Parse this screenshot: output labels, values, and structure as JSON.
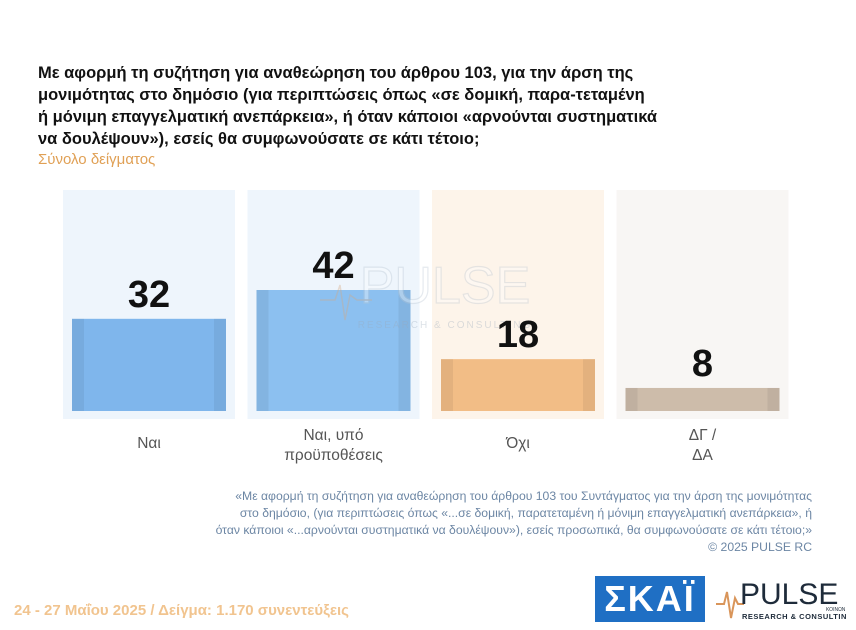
{
  "question": {
    "title": "Με αφορμή τη συζήτηση για αναθεώρηση του άρθρου 103, για την άρση της μονιμότητας στο δημόσιο (για περιπτώσεις όπως «σε δομική, παρα-τεταμένη ή μόνιμη επαγγελματική ανεπάρκεια», ή όταν κάποιοι «αρνούνται συστηματικά να δουλέψουν»), εσείς θα συμφωνούσατε σε κάτι τέτοιο;",
    "subtitle": "Σύνολο δείγματος"
  },
  "chart_data": {
    "type": "bar",
    "categories": [
      [
        "Ναι"
      ],
      [
        "Ναι, υπό",
        "προϋποθέσεις"
      ],
      [
        "Όχι"
      ],
      [
        "ΔΓ /",
        "ΔΑ"
      ]
    ],
    "values": [
      32,
      42,
      18,
      8
    ],
    "unit": "",
    "colors": [
      "#7fb6ec",
      "#8cc0f0",
      "#f2bd86",
      "#cdbcaa"
    ],
    "panel_colors": [
      "#eef5fc",
      "#eef5fc",
      "#fdf4ea",
      "#f8f6f4"
    ],
    "ylim": [
      0,
      42
    ]
  },
  "watermark": {
    "main": "PULSE",
    "sub": "RESEARCH & CONSULTING"
  },
  "footnote": {
    "lines": [
      "«Με αφορμή τη συζήτηση για αναθεώρηση του άρθρου 103 του Συντάγματος για την άρση της μονιμότητας",
      "στο δημόσιο, (για περιπτώσεις όπως «...σε δομική, παρατεταμένη ή μόνιμη επαγγελματική ανεπάρκεια», ή",
      "όταν κάποιοι «...αρνούνται συστηματικά να δουλέψουν»), εσείς προσωπικά, θα συμφωνούσατε σε κάτι τέτοιο;»",
      "©  2025  PULSE RC"
    ]
  },
  "survey_info": "24 - 27 Μαΐου 2025  /  Δείγμα:  1.170 συνεντεύξεις",
  "logos": {
    "skai": "ΣΚΑΪ",
    "pulse": "PULSE",
    "pulse_sub": "RESEARCH & CONSULTING",
    "pulse_tag": "ΚΟΙΝΩΝ"
  }
}
